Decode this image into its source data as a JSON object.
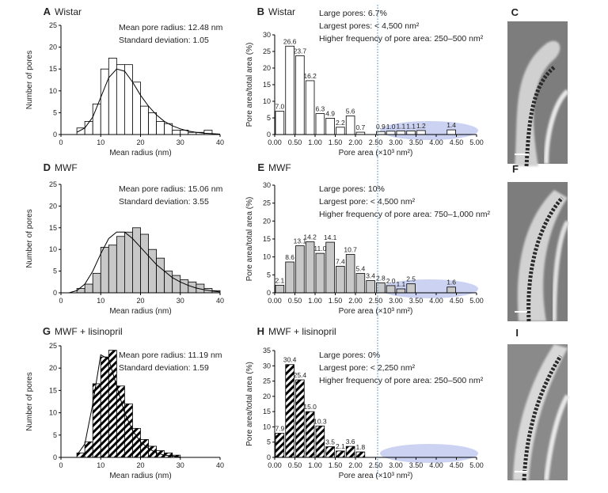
{
  "chart_data": [
    {
      "type": "histogram",
      "panel": "A",
      "title": "Wistar",
      "annotations": [
        "Mean pore radius: 12.48 nm",
        "Standard deviation: 1.05"
      ],
      "xlabel": "Mean radius (nm)",
      "ylabel": "Number of pores",
      "bins": [
        4,
        6,
        8,
        10,
        12,
        14,
        16,
        18,
        20,
        22,
        24,
        26,
        28,
        30,
        32,
        34,
        36,
        38
      ],
      "counts": [
        1.5,
        3,
        7,
        15,
        17.5,
        16,
        16,
        12,
        6.5,
        5,
        3,
        2.5,
        1,
        1,
        0.5,
        0.5,
        1
      ],
      "curve_x": [
        4,
        6,
        8,
        10,
        12,
        14,
        16,
        18,
        20,
        22,
        24,
        26,
        28,
        30,
        32,
        34,
        36,
        38,
        40
      ],
      "curve_y": [
        0.5,
        1.5,
        4,
        8.5,
        13,
        15,
        14.5,
        12,
        9,
        6.5,
        4.5,
        3,
        2,
        1.3,
        0.8,
        0.5,
        0.3,
        0.2,
        0.1
      ],
      "color": "#ffffff",
      "hatch": false,
      "xlim": [
        0,
        40
      ],
      "xticks": [
        0,
        10,
        20,
        30,
        40
      ],
      "ylim": [
        0,
        25
      ],
      "yticks": [
        0,
        5,
        10,
        15,
        20,
        25
      ]
    },
    {
      "type": "histogram",
      "panel": "B",
      "title": "Wistar",
      "annotations": [
        "Large pores: 6.7%",
        "Largest pores: < 4,500 nm²",
        "Higher frequency of pore area: 250–500 nm²"
      ],
      "xlabel": "Pore area (×10³ nm²)",
      "ylabel": "Pore area/total area (%)",
      "bins": [
        0,
        0.25,
        0.5,
        0.75,
        1,
        1.25,
        1.5,
        1.75,
        2,
        2.25,
        2.5,
        2.75,
        3,
        3.25,
        3.5,
        3.75,
        4,
        4.25,
        4.5,
        4.75,
        5
      ],
      "counts": [
        7.0,
        26.6,
        23.7,
        16.2,
        6.3,
        4.9,
        2.2,
        5.6,
        0.7,
        null,
        0.9,
        1.0,
        1.1,
        1.1,
        1.2,
        null,
        null,
        1.4,
        null,
        null
      ],
      "value_labels": [
        "7.0",
        "26.6",
        "23.7",
        "16.2",
        "6.3",
        "4.9",
        "2.2",
        "5.6",
        "0.7",
        null,
        "0.9",
        "1.0",
        "1.1",
        "1.1",
        "1.2",
        null,
        null,
        "1.4",
        null,
        null
      ],
      "color": "#ffffff",
      "hatch": false,
      "xlim": [
        0,
        5
      ],
      "xticks": [
        {
          "value": 0,
          "label": "0.00"
        },
        {
          "value": 0.5,
          "label": "0.50"
        },
        {
          "value": 1,
          "label": "1.00"
        },
        {
          "value": 1.5,
          "label": "1.50"
        },
        {
          "value": 2,
          "label": "2.00"
        },
        {
          "value": 2.5,
          "label": "2.50"
        },
        {
          "value": 3,
          "label": "3.00"
        },
        {
          "value": 3.5,
          "label": "3.50"
        },
        {
          "value": 4,
          "label": "4.00"
        },
        {
          "value": 4.5,
          "label": "4.50"
        },
        {
          "value": 5,
          "label": "5.00"
        }
      ],
      "ylim": [
        0,
        30
      ],
      "yticks": [
        0,
        5,
        10,
        15,
        20,
        25,
        30
      ]
    },
    {
      "type": "histogram",
      "panel": "D",
      "title": "MWF",
      "annotations": [
        "Mean pore radius: 15.06 nm",
        "Standard deviation: 3.55"
      ],
      "xlabel": "Mean radius (nm)",
      "ylabel": "Number of pores",
      "bins": [
        4,
        6,
        8,
        10,
        12,
        14,
        16,
        18,
        20,
        22,
        24,
        26,
        28,
        30,
        32,
        34,
        36,
        38,
        40
      ],
      "counts": [
        1,
        2,
        4.5,
        10.5,
        11,
        13,
        14,
        15,
        13.5,
        10,
        8,
        5,
        4,
        3,
        2.5,
        2,
        1,
        0.5
      ],
      "curve_x": [
        2,
        4,
        6,
        8,
        10,
        12,
        14,
        16,
        18,
        20,
        22,
        24,
        26,
        28,
        30,
        32,
        34,
        36,
        38,
        40
      ],
      "curve_y": [
        0,
        0.5,
        2,
        5,
        9,
        12.5,
        14,
        14,
        12.5,
        10.5,
        8.5,
        6.5,
        5,
        3.5,
        2.5,
        1.7,
        1.1,
        0.7,
        0.4,
        0.2
      ],
      "color": "#c8c8c8",
      "hatch": false,
      "xlim": [
        0,
        40
      ],
      "xticks": [
        0,
        10,
        20,
        30,
        40
      ],
      "ylim": [
        0,
        25
      ],
      "yticks": [
        0,
        5,
        10,
        15,
        20,
        25
      ]
    },
    {
      "type": "histogram",
      "panel": "E",
      "title": "MWF",
      "annotations": [
        "Large pores: 10%",
        "Largest pore: < 4,500 nm²",
        "Higher frequency of pore area: 750–1,000 nm²"
      ],
      "xlabel": "Pore area (×10³ nm²)",
      "ylabel": "Pore area/total area (%)",
      "bins": [
        0,
        0.25,
        0.5,
        0.75,
        1,
        1.25,
        1.5,
        1.75,
        2,
        2.25,
        2.5,
        2.75,
        3,
        3.25,
        3.5,
        3.75,
        4,
        4.25,
        4.5,
        4.75,
        5
      ],
      "counts": [
        2.1,
        8.6,
        13.1,
        14.2,
        11.0,
        14.1,
        7.4,
        10.7,
        5.4,
        3.4,
        2.8,
        2.0,
        1.1,
        2.5,
        null,
        null,
        null,
        1.6,
        null,
        null
      ],
      "value_labels": [
        "2.1",
        "8.6",
        "13.1",
        "14.2",
        "11.0",
        "14.1",
        "7.4",
        "10.7",
        "5.4",
        "3.4",
        "2.8",
        "2.0",
        "1.1",
        "2.5",
        null,
        null,
        null,
        "1.6",
        null,
        null
      ],
      "color": "#c8c8c8",
      "hatch": false,
      "xlim": [
        0,
        5
      ],
      "xticks": [
        {
          "value": 0,
          "label": "0.00"
        },
        {
          "value": 0.5,
          "label": "0.50"
        },
        {
          "value": 1,
          "label": "1.00"
        },
        {
          "value": 1.5,
          "label": "1.50"
        },
        {
          "value": 2,
          "label": "2.00"
        },
        {
          "value": 2.5,
          "label": "2.50"
        },
        {
          "value": 3,
          "label": "3.00"
        },
        {
          "value": 3.5,
          "label": "3.50"
        },
        {
          "value": 4,
          "label": "4.00"
        },
        {
          "value": 4.5,
          "label": "4.50"
        },
        {
          "value": 5,
          "label": "5.00"
        }
      ],
      "ylim": [
        0,
        30
      ],
      "yticks": [
        0,
        5,
        10,
        15,
        20,
        25,
        30
      ]
    },
    {
      "type": "histogram",
      "panel": "G",
      "title": "MWF + lisinopril",
      "annotations": [
        "Mean pore radius: 11.19 nm",
        "Standard deviation: 1.59"
      ],
      "xlabel": "Mean radius (nm)",
      "ylabel": "Number of pores",
      "bins": [
        4,
        6,
        8,
        10,
        12,
        14,
        16,
        18,
        20,
        22,
        24,
        26,
        28,
        30
      ],
      "counts": [
        1,
        3.5,
        16.5,
        22.5,
        24,
        16,
        12,
        6.5,
        4,
        2.5,
        1.5,
        1,
        0.5
      ],
      "curve_x": [
        4,
        6,
        8,
        10,
        12,
        14,
        16,
        18,
        20,
        22,
        24,
        26,
        28,
        30
      ],
      "curve_y": [
        0.5,
        3,
        12,
        23,
        22,
        16,
        10,
        6,
        3.5,
        2,
        1,
        0.5,
        0.3,
        0.1
      ],
      "color": "#000000",
      "hatch": true,
      "xlim": [
        0,
        40
      ],
      "xticks": [
        0,
        10,
        20,
        30,
        40
      ],
      "ylim": [
        0,
        25
      ],
      "yticks": [
        0,
        5,
        10,
        15,
        20,
        25
      ]
    },
    {
      "type": "histogram",
      "panel": "H",
      "title": "MWF + lisinopril",
      "annotations": [
        "Large pores: 0%",
        "Largest pore: < 2,250 nm²",
        "Higher frequency of pore area: 250–500 nm²"
      ],
      "xlabel": "Pore area (×10³ nm²)",
      "ylabel": "Pore area/total area (%)",
      "bins": [
        0,
        0.25,
        0.5,
        0.75,
        1,
        1.25,
        1.5,
        1.75,
        2,
        2.25,
        2.5,
        2.75,
        3,
        3.25,
        3.5,
        3.75,
        4,
        4.25,
        4.5,
        4.75,
        5
      ],
      "counts": [
        7.9,
        30.4,
        25.4,
        15.0,
        10.3,
        3.5,
        2.1,
        3.6,
        1.8,
        null,
        null,
        null,
        null,
        null,
        null,
        null,
        null,
        null,
        null,
        null
      ],
      "value_labels": [
        "7.9",
        "30.4",
        "25.4",
        "15.0",
        "10.3",
        "3.5",
        "2.1",
        "3.6",
        "1.8",
        null,
        null,
        null,
        null,
        null,
        null,
        null,
        null,
        null,
        null,
        null
      ],
      "color": "#000000",
      "hatch": true,
      "xlim": [
        0,
        5
      ],
      "xticks": [
        {
          "value": 0,
          "label": "0.00"
        },
        {
          "value": 0.5,
          "label": "0.50"
        },
        {
          "value": 1,
          "label": "1.00"
        },
        {
          "value": 1.5,
          "label": "1.50"
        },
        {
          "value": 2,
          "label": "2.00"
        },
        {
          "value": 2.5,
          "label": "2.50"
        },
        {
          "value": 3,
          "label": "3.00"
        },
        {
          "value": 3.5,
          "label": "3.50"
        },
        {
          "value": 4,
          "label": "4.00"
        },
        {
          "value": 4.5,
          "label": "4.50"
        },
        {
          "value": 5,
          "label": "5.00"
        }
      ],
      "ylim": [
        0,
        35
      ],
      "yticks": [
        0,
        5,
        10,
        15,
        20,
        25,
        30,
        35
      ]
    }
  ],
  "image_panels": [
    {
      "panel": "C"
    },
    {
      "panel": "F"
    },
    {
      "panel": "I"
    }
  ]
}
